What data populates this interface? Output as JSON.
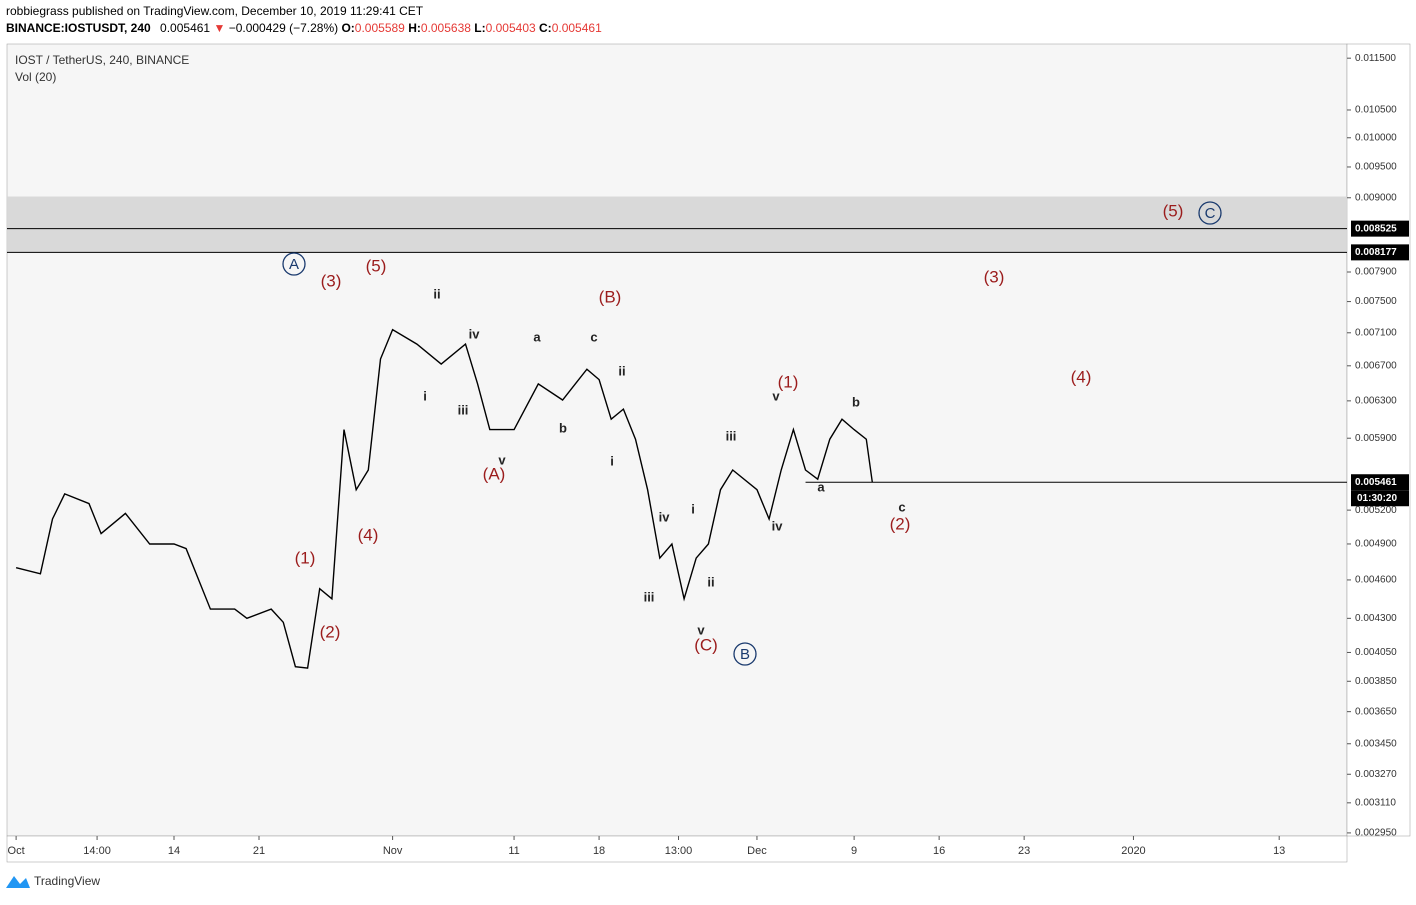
{
  "header": {
    "publisher": "robbiegrass published on TradingView.com, December 10, 2019 11:29:41 CET",
    "symbol": "BINANCE:IOSTUSDT, 240",
    "last": "0.005461",
    "arrow": "▼",
    "change": "−0.000429 (−7.28%)",
    "open_label": "O:",
    "open": "0.005589",
    "high_label": "H:",
    "high": "0.005638",
    "low_label": "L:",
    "low": "0.005403",
    "close_label": "C:",
    "close": "0.005461"
  },
  "chart_data": {
    "type": "line",
    "title": "IOST / TetherUS, 240, BINANCE",
    "subtitle": "Vol (20)",
    "log_scale": true,
    "color": "#000000",
    "x": [
      "2019-10-01T00:00",
      "2019-10-03T00:00",
      "2019-10-04T00:00",
      "2019-10-05T00:00",
      "2019-10-07T00:00",
      "2019-10-08T00:00",
      "2019-10-10T00:00",
      "2019-10-12T00:00",
      "2019-10-14T00:00",
      "2019-10-15T00:00",
      "2019-10-17T00:00",
      "2019-10-19T00:00",
      "2019-10-20T00:00",
      "2019-10-22T00:00",
      "2019-10-23T00:00",
      "2019-10-24T00:00",
      "2019-10-25T00:00",
      "2019-10-26T00:00",
      "2019-10-27T00:00",
      "2019-10-28T00:00",
      "2019-10-29T00:00",
      "2019-10-30T00:00",
      "2019-10-31T00:00",
      "2019-11-01T00:00",
      "2019-11-03T00:00",
      "2019-11-05T00:00",
      "2019-11-07T00:00",
      "2019-11-08T00:00",
      "2019-11-09T00:00",
      "2019-11-11T00:00",
      "2019-11-13T00:00",
      "2019-11-15T00:00",
      "2019-11-17T00:00",
      "2019-11-18T00:00",
      "2019-11-19T00:00",
      "2019-11-20T00:00",
      "2019-11-21T00:00",
      "2019-11-22T00:00",
      "2019-11-23T00:00",
      "2019-11-24T00:00",
      "2019-11-25T00:00",
      "2019-11-26T00:00",
      "2019-11-27T00:00",
      "2019-11-28T00:00",
      "2019-11-29T00:00",
      "2019-12-01T00:00",
      "2019-12-02T00:00",
      "2019-12-03T00:00",
      "2019-12-04T00:00",
      "2019-12-05T00:00",
      "2019-12-06T00:00",
      "2019-12-07T00:00",
      "2019-12-08T00:00",
      "2019-12-09T00:00",
      "2019-12-10T00:00",
      "2019-12-10T12:00"
    ],
    "values": [
      0.0047,
      0.00465,
      0.00512,
      0.00535,
      0.00526,
      0.00499,
      0.00517,
      0.0049,
      0.0049,
      0.00486,
      0.00437,
      0.00437,
      0.0043,
      0.00437,
      0.00427,
      0.00395,
      0.00394,
      0.00453,
      0.00445,
      0.00599,
      0.00539,
      0.00558,
      0.00678,
      0.00714,
      0.00696,
      0.00672,
      0.00696,
      0.00649,
      0.00599,
      0.00599,
      0.00649,
      0.00631,
      0.00666,
      0.00654,
      0.0061,
      0.00621,
      0.00589,
      0.00539,
      0.00478,
      0.0049,
      0.00445,
      0.00478,
      0.0049,
      0.00539,
      0.00558,
      0.00539,
      0.00512,
      0.00558,
      0.00599,
      0.00558,
      0.00549,
      0.00589,
      0.0061,
      0.00599,
      0.00589,
      0.005461
    ],
    "xlim": [
      "2019-09-30T06:00",
      "2020-01-18T14:00"
    ],
    "xticks": [
      {
        "value": "2019-10-01T00:00",
        "label": "Oct"
      },
      {
        "value": "2019-10-07T16:00",
        "label": "14:00"
      },
      {
        "value": "2019-10-14T00:00",
        "label": "14"
      },
      {
        "value": "2019-10-21T00:00",
        "label": "21"
      },
      {
        "value": "2019-11-01T00:00",
        "label": "Nov"
      },
      {
        "value": "2019-11-11T00:00",
        "label": "11"
      },
      {
        "value": "2019-11-18T00:00",
        "label": "18"
      },
      {
        "value": "2019-11-24T13:00",
        "label": "13:00"
      },
      {
        "value": "2019-12-01T00:00",
        "label": "Dec"
      },
      {
        "value": "2019-12-09T00:00",
        "label": "9"
      },
      {
        "value": "2019-12-16T00:00",
        "label": "16"
      },
      {
        "value": "2019-12-23T00:00",
        "label": "23"
      },
      {
        "value": "2020-01-01T00:00",
        "label": "2020"
      },
      {
        "value": "2020-01-13T00:00",
        "label": "13"
      }
    ],
    "ylim": [
      0.002934,
      0.01179
    ],
    "yticks": [
      {
        "value": 0.0115,
        "label": "0.011500"
      },
      {
        "value": 0.0105,
        "label": "0.010500"
      },
      {
        "value": 0.01,
        "label": "0.010000"
      },
      {
        "value": 0.0095,
        "label": "0.009500"
      },
      {
        "value": 0.009,
        "label": "0.009000"
      },
      {
        "value": 0.0079,
        "label": "0.007900"
      },
      {
        "value": 0.0075,
        "label": "0.007500"
      },
      {
        "value": 0.0071,
        "label": "0.007100"
      },
      {
        "value": 0.0067,
        "label": "0.006700"
      },
      {
        "value": 0.0063,
        "label": "0.006300"
      },
      {
        "value": 0.0059,
        "label": "0.005900"
      },
      {
        "value": 0.0052,
        "label": "0.005200"
      },
      {
        "value": 0.0049,
        "label": "0.004900"
      },
      {
        "value": 0.0046,
        "label": "0.004600"
      },
      {
        "value": 0.0043,
        "label": "0.004300"
      },
      {
        "value": 0.00405,
        "label": "0.004050"
      },
      {
        "value": 0.00385,
        "label": "0.003850"
      },
      {
        "value": 0.00365,
        "label": "0.003650"
      },
      {
        "value": 0.00345,
        "label": "0.003450"
      },
      {
        "value": 0.00327,
        "label": "0.003270"
      },
      {
        "value": 0.00311,
        "label": "0.003110"
      },
      {
        "value": 0.00295,
        "label": "0.002950"
      }
    ],
    "zone": [
      0.00902,
      0.008177
    ],
    "price_lines": [
      {
        "value": 0.008525,
        "label": "0.008525"
      },
      {
        "value": 0.008177,
        "label": "0.008177"
      },
      {
        "value": 0.005461,
        "label": "0.005461",
        "from": "2019-12-05T00:00"
      }
    ],
    "countdown": "01:30:20",
    "annotations": [
      "(5)",
      "(3)",
      "(5)",
      "(B)",
      "(3)",
      "(4)",
      "(1)",
      "(1)",
      "(4)",
      "(2)",
      "(A)",
      "(C)",
      "(2)",
      "A",
      "C",
      "B",
      "ii",
      "iv",
      "a",
      "c",
      "i",
      "iii",
      "ii",
      "b",
      "v",
      "i",
      "v",
      "b",
      "iii",
      "a",
      "c",
      "i",
      "iv",
      "iv",
      "ii",
      "iii",
      "v"
    ]
  },
  "footer": {
    "brand": "TradingView"
  }
}
